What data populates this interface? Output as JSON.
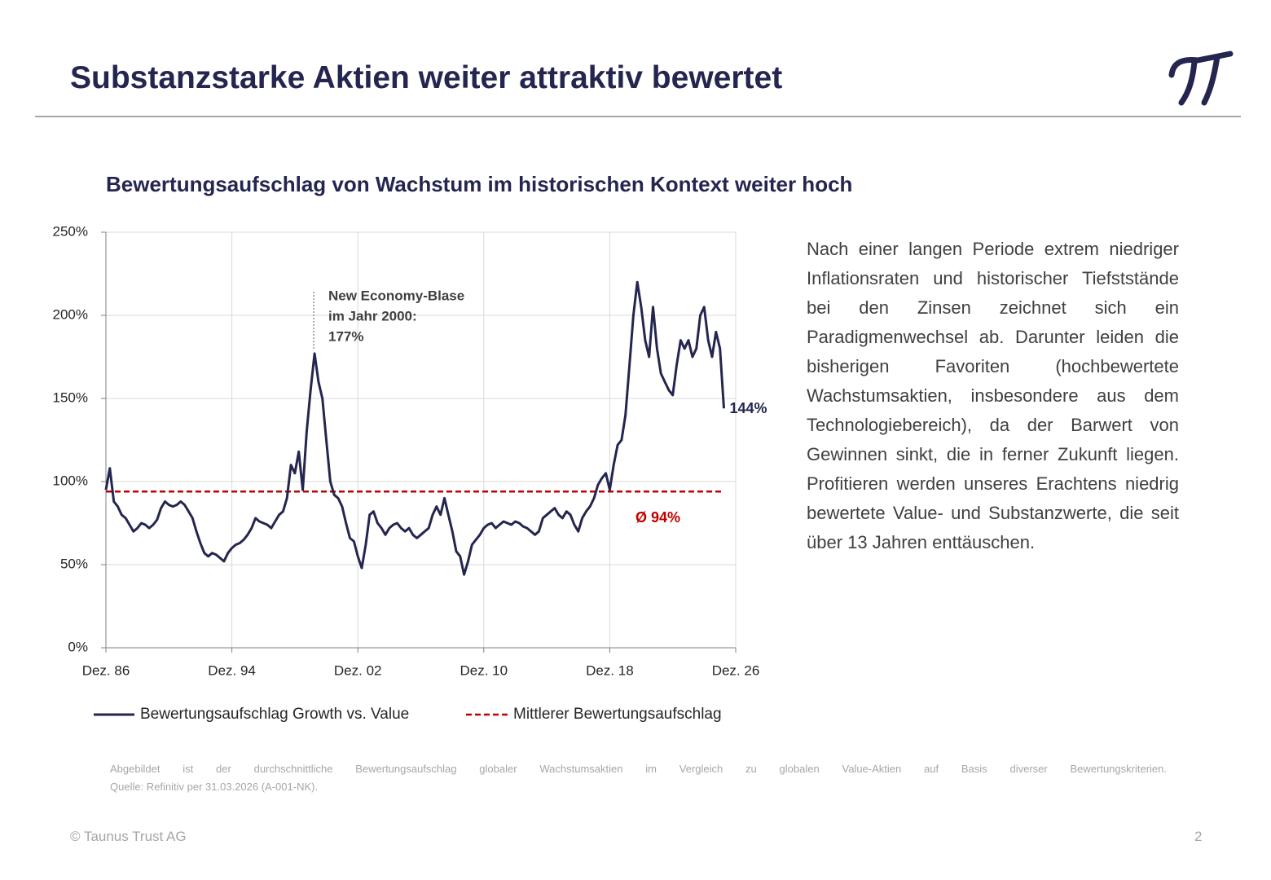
{
  "header": {
    "title": "Substanzstarke Aktien weiter attraktiv bewertet"
  },
  "chart_data": {
    "type": "line",
    "title": "Bewertungsaufschlag von Wachstum im historischen Kontext weiter hoch",
    "x": [
      "1986-12",
      "1987-03",
      "1987-06",
      "1987-09",
      "1987-12",
      "1988-03",
      "1988-06",
      "1988-09",
      "1988-12",
      "1989-03",
      "1989-06",
      "1989-09",
      "1989-12",
      "1990-03",
      "1990-06",
      "1990-09",
      "1990-12",
      "1991-03",
      "1991-06",
      "1991-09",
      "1991-12",
      "1992-03",
      "1992-06",
      "1992-09",
      "1992-12",
      "1993-03",
      "1993-06",
      "1993-09",
      "1993-12",
      "1994-03",
      "1994-06",
      "1994-09",
      "1994-12",
      "1995-03",
      "1995-06",
      "1995-09",
      "1995-12",
      "1996-03",
      "1996-06",
      "1996-09",
      "1996-12",
      "1997-03",
      "1997-06",
      "1997-09",
      "1997-12",
      "1998-03",
      "1998-06",
      "1998-09",
      "1998-12",
      "1999-03",
      "1999-06",
      "1999-09",
      "1999-12",
      "2000-03",
      "2000-06",
      "2000-09",
      "2000-12",
      "2001-03",
      "2001-06",
      "2001-09",
      "2001-12",
      "2002-03",
      "2002-06",
      "2002-09",
      "2002-12",
      "2003-03",
      "2003-06",
      "2003-09",
      "2003-12",
      "2004-03",
      "2004-06",
      "2004-09",
      "2004-12",
      "2005-03",
      "2005-06",
      "2005-09",
      "2005-12",
      "2006-03",
      "2006-06",
      "2006-09",
      "2006-12",
      "2007-03",
      "2007-06",
      "2007-09",
      "2007-12",
      "2008-03",
      "2008-06",
      "2008-09",
      "2008-12",
      "2009-03",
      "2009-06",
      "2009-09",
      "2009-12",
      "2010-03",
      "2010-06",
      "2010-09",
      "2010-12",
      "2011-03",
      "2011-06",
      "2011-09",
      "2011-12",
      "2012-03",
      "2012-06",
      "2012-09",
      "2012-12",
      "2013-03",
      "2013-06",
      "2013-09",
      "2013-12",
      "2014-03",
      "2014-06",
      "2014-09",
      "2014-12",
      "2015-03",
      "2015-06",
      "2015-09",
      "2015-12",
      "2016-03",
      "2016-06",
      "2016-09",
      "2016-12",
      "2017-03",
      "2017-06",
      "2017-09",
      "2017-12",
      "2018-03",
      "2018-06",
      "2018-09",
      "2018-12",
      "2019-03",
      "2019-06",
      "2019-09",
      "2019-12",
      "2020-03",
      "2020-06",
      "2020-09",
      "2020-12",
      "2021-03",
      "2021-06",
      "2021-09",
      "2021-12",
      "2022-03",
      "2022-06",
      "2022-09",
      "2022-12",
      "2023-03",
      "2023-06",
      "2023-09",
      "2023-12",
      "2024-03",
      "2024-06",
      "2024-09",
      "2024-12",
      "2025-03",
      "2025-06",
      "2025-09",
      "2025-12",
      "2026-03"
    ],
    "series": [
      {
        "name": "Bewertungsaufschlag Growth vs. Value",
        "color": "#24264f",
        "end_label": "144%",
        "values": [
          95,
          108,
          88,
          85,
          80,
          78,
          74,
          70,
          72,
          75,
          74,
          72,
          74,
          77,
          84,
          88,
          86,
          85,
          86,
          88,
          86,
          82,
          78,
          70,
          63,
          57,
          55,
          57,
          56,
          54,
          52,
          57,
          60,
          62,
          63,
          65,
          68,
          72,
          78,
          76,
          75,
          74,
          72,
          76,
          80,
          82,
          90,
          110,
          105,
          118,
          95,
          130,
          155,
          177,
          160,
          150,
          125,
          100,
          92,
          90,
          85,
          75,
          66,
          64,
          55,
          48,
          62,
          80,
          82,
          75,
          72,
          68,
          72,
          74,
          75,
          72,
          70,
          72,
          68,
          66,
          68,
          70,
          72,
          80,
          85,
          80,
          90,
          80,
          70,
          58,
          55,
          44,
          52,
          62,
          65,
          68,
          72,
          74,
          75,
          72,
          74,
          76,
          75,
          74,
          76,
          75,
          73,
          72,
          70,
          68,
          70,
          78,
          80,
          82,
          84,
          80,
          78,
          82,
          80,
          74,
          70,
          78,
          82,
          85,
          90,
          98,
          102,
          105,
          95,
          110,
          122,
          125,
          140,
          170,
          200,
          220,
          205,
          185,
          175,
          205,
          180,
          165,
          160,
          155,
          152,
          170,
          185,
          180,
          185,
          175,
          180,
          200,
          205,
          185,
          175,
          190,
          180,
          144
        ]
      }
    ],
    "reference_line": {
      "name": "Mittlerer Bewertungsaufschlag",
      "value": 94,
      "label": "Ø  94%",
      "color": "#c00000",
      "dashed": true
    },
    "annotation": [
      "New Economy-Blase",
      "im Jahr 2000:",
      "177%"
    ],
    "xlim": [
      "1986-12",
      "2026-12"
    ],
    "xticks": [
      {
        "value": "1986-12",
        "label": "Dez. 86"
      },
      {
        "value": "1994-12",
        "label": "Dez. 94"
      },
      {
        "value": "2002-12",
        "label": "Dez. 02"
      },
      {
        "value": "2010-12",
        "label": "Dez. 10"
      },
      {
        "value": "2018-12",
        "label": "Dez. 18"
      },
      {
        "value": "2026-12",
        "label": "Dez. 26"
      }
    ],
    "ylim": [
      0,
      250
    ],
    "yticks": [
      {
        "value": 0,
        "label": "0%"
      },
      {
        "value": 50,
        "label": "50%"
      },
      {
        "value": 100,
        "label": "100%"
      },
      {
        "value": 150,
        "label": "150%"
      },
      {
        "value": 200,
        "label": "200%"
      },
      {
        "value": 250,
        "label": "250%"
      }
    ],
    "grid": true,
    "legend": "bottom"
  },
  "text": {
    "paragraph": "Nach einer langen Periode extrem niedriger Inflationsraten und historischer Tiefststände bei den Zinsen zeichnet sich ein Paradigmenwechsel ab. Darunter leiden die bisherigen Favoriten (hochbewertete Wachstumsaktien, insbesondere aus dem Technologiebereich), da der Barwert von Gewinnen sinkt, die in ferner Zukunft liegen. Profitieren werden unseres Erachtens niedrig bewertete Value- und Substanzwerte, die seit über 13 Jahren enttäuschen."
  },
  "footnote": {
    "description": "Abgebildet ist der durchschnittliche Bewertungsaufschlag globaler Wachstumsaktien im Vergleich zu globalen Value-Aktien auf Basis diverser Bewertungskriterien.",
    "source": "Quelle: Refinitiv per 31.03.2026 (A-001-NK)."
  },
  "footer": {
    "copyright": "© Taunus Trust AG",
    "page": "2"
  }
}
